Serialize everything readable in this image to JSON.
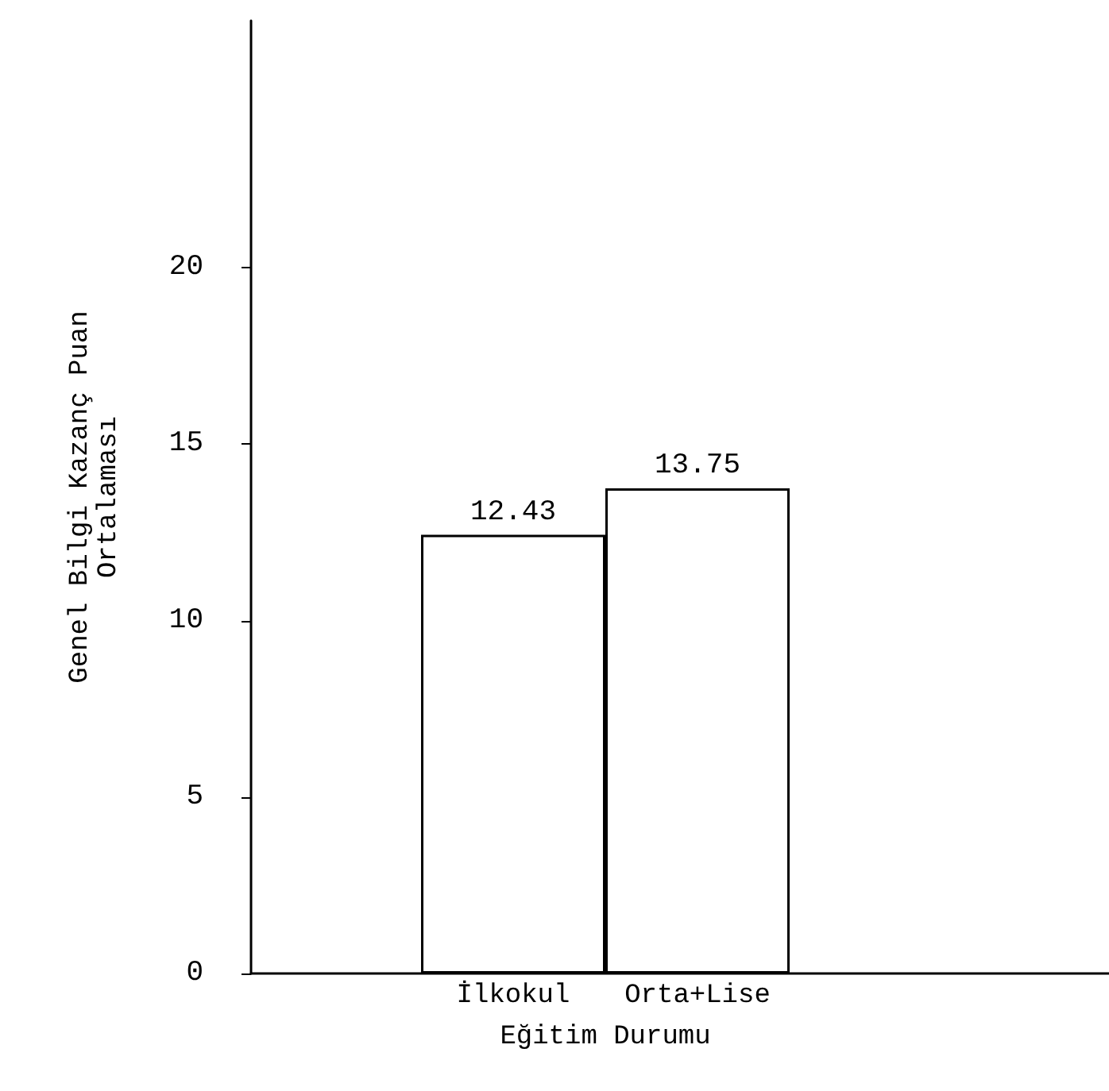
{
  "chart_data": {
    "type": "bar",
    "xlabel": "Eğitim Durumu",
    "ylabel": "Genel Bilgi Kazanç Puan\nOrtalaması",
    "categories": [
      "İlkokul",
      "Orta+Lise"
    ],
    "values": [
      12.43,
      13.75
    ],
    "color": "#ffffff",
    "ylim": [
      0,
      27
    ],
    "yticks": [
      0,
      5,
      10,
      15,
      20
    ],
    "data_labels": true,
    "grid": false
  }
}
